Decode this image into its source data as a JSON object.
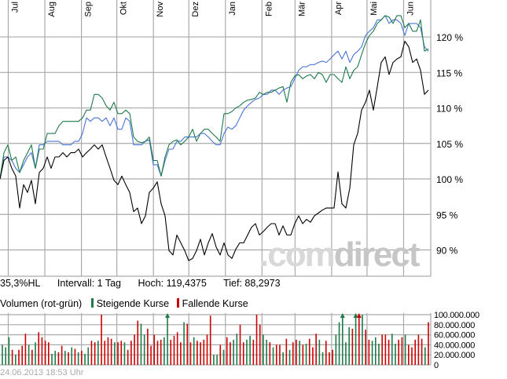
{
  "chart_data": [
    {
      "type": "line",
      "x_range": [
        "2012-06-24",
        "2013-06-24"
      ],
      "x_ticks": [
        {
          "label": "Jul",
          "date": "2012-07-01"
        },
        {
          "label": "Aug",
          "date": "2012-08-01"
        },
        {
          "label": "Sep",
          "date": "2012-09-01"
        },
        {
          "label": "Okt",
          "date": "2012-10-01"
        },
        {
          "label": "Nov",
          "date": "2012-11-01"
        },
        {
          "label": "Dez",
          "date": "2012-12-01"
        },
        {
          "label": "Jan",
          "date": "2013-01-01"
        },
        {
          "label": "Feb",
          "date": "2013-02-01"
        },
        {
          "label": "Mär",
          "date": "2013-03-01"
        },
        {
          "label": "Apr",
          "date": "2013-04-01"
        },
        {
          "label": "Mai",
          "date": "2013-05-01"
        },
        {
          "label": "Jun",
          "date": "2013-06-01"
        }
      ],
      "ylim": [
        86.3,
        125.2
      ],
      "y_ticks": [
        {
          "value": 90,
          "label": "90 %"
        },
        {
          "value": 95,
          "label": "95 %"
        },
        {
          "value": 100,
          "label": "100 %"
        },
        {
          "value": 105,
          "label": "105 %"
        },
        {
          "value": 110,
          "label": "110 %"
        },
        {
          "value": 115,
          "label": "115 %"
        },
        {
          "value": 120,
          "label": "120 %"
        }
      ],
      "grid": true,
      "series": [
        {
          "color": "#000000",
          "values": [
            100.0,
            102.6,
            103.1,
            101.5,
            100.4,
            95.9,
            99.2,
            98.1,
            99.8,
            96.5,
            100.9,
            101.5,
            103.1,
            101.5,
            103.1,
            103.1,
            103.7,
            103.1,
            103.7,
            103.7,
            104.2,
            103.1,
            103.7,
            104.2,
            104.8,
            104.2,
            104.8,
            103.1,
            101.5,
            99.8,
            99.2,
            100.4,
            99.2,
            98.1,
            95.4,
            95.9,
            93.7,
            94.8,
            98.1,
            98.7,
            99.6,
            96.5,
            94.8,
            89.9,
            89.3,
            92.1,
            91.0,
            89.9,
            88.5,
            88.8,
            89.9,
            91.5,
            89.3,
            91.0,
            92.3,
            90.4,
            89.3,
            91.0,
            89.3,
            88.8,
            90.1,
            91.0,
            91.0,
            92.1,
            93.2,
            93.7,
            92.1,
            92.6,
            93.2,
            93.7,
            93.7,
            92.1,
            93.4,
            92.1,
            92.1,
            93.7,
            94.8,
            93.7,
            94.3,
            93.9,
            94.8,
            95.2,
            95.6,
            95.9,
            95.9,
            95.9,
            101.0,
            96.5,
            95.9,
            98.7,
            104.8,
            106.4,
            109.7,
            110.8,
            112.5,
            109.7,
            113.0,
            116.4,
            117.2,
            114.7,
            116.4,
            116.9,
            117.2,
            119.4,
            118.6,
            116.4,
            116.9,
            115.3,
            111.9,
            112.5
          ]
        },
        {
          "color": "#1e7a4a",
          "values": [
            100.0,
            103.7,
            104.8,
            102.6,
            103.1,
            100.9,
            102.6,
            103.7,
            104.8,
            101.5,
            104.2,
            104.2,
            106.4,
            106.4,
            106.4,
            107.5,
            108.1,
            108.1,
            108.1,
            108.1,
            108.1,
            108.6,
            109.7,
            109.7,
            111.9,
            111.9,
            111.4,
            110.3,
            109.7,
            110.8,
            109.2,
            109.2,
            109.7,
            109.2,
            105.9,
            105.3,
            105.1,
            105.3,
            105.9,
            102.6,
            102.6,
            100.4,
            103.1,
            104.8,
            105.3,
            105.5,
            104.8,
            105.3,
            105.9,
            107.0,
            105.3,
            106.4,
            107.0,
            107.0,
            106.4,
            105.9,
            105.3,
            109.2,
            109.2,
            109.5,
            110.0,
            110.3,
            110.8,
            111.1,
            111.2,
            111.4,
            112.2,
            111.9,
            112.2,
            112.2,
            112.5,
            112.8,
            113.0,
            110.8,
            113.6,
            114.5,
            114.7,
            114.1,
            114.5,
            114.7,
            114.1,
            115.0,
            114.7,
            113.6,
            114.7,
            114.7,
            114.1,
            113.6,
            115.8,
            114.1,
            115.3,
            115.8,
            117.5,
            119.1,
            120.2,
            120.8,
            121.9,
            122.4,
            123.0,
            122.8,
            121.9,
            123.0,
            123.0,
            121.3,
            121.9,
            120.8,
            120.8,
            122.4,
            118.0,
            118.3
          ]
        },
        {
          "color": "#4a74d8",
          "values": [
            100.0,
            103.1,
            103.1,
            102.6,
            101.5,
            100.9,
            102.0,
            103.1,
            103.7,
            101.5,
            104.8,
            104.8,
            105.3,
            105.3,
            105.3,
            105.3,
            104.8,
            104.8,
            104.8,
            105.3,
            105.3,
            106.4,
            108.6,
            108.1,
            108.6,
            108.6,
            108.1,
            108.6,
            107.5,
            108.6,
            107.0,
            107.0,
            108.6,
            108.1,
            104.8,
            104.8,
            104.8,
            105.3,
            105.5,
            102.0,
            102.0,
            100.4,
            102.6,
            104.2,
            104.2,
            105.3,
            105.3,
            105.9,
            105.9,
            105.9,
            105.9,
            106.4,
            106.4,
            105.9,
            105.3,
            104.8,
            104.8,
            106.4,
            107.3,
            107.0,
            107.5,
            108.6,
            109.7,
            110.3,
            110.8,
            111.2,
            111.4,
            111.9,
            111.9,
            112.5,
            112.5,
            111.9,
            112.5,
            112.8,
            113.0,
            114.1,
            115.3,
            115.8,
            115.8,
            116.1,
            116.1,
            116.4,
            116.6,
            116.4,
            116.9,
            117.5,
            118.0,
            116.9,
            118.0,
            116.4,
            117.5,
            118.0,
            118.6,
            120.2,
            120.8,
            121.3,
            122.4,
            122.4,
            123.0,
            121.9,
            122.4,
            122.4,
            121.9,
            120.2,
            121.9,
            121.9,
            121.9,
            121.3,
            118.6,
            118.0
          ]
        }
      ]
    },
    {
      "type": "bar",
      "title": "Volumen (rot-grün)",
      "legend": [
        {
          "label": "Steigende Kurse",
          "color": "#1e7a4a"
        },
        {
          "label": "Fallende Kurse",
          "color": "#cc0000"
        }
      ],
      "ylim": [
        0,
        100000000
      ],
      "y_ticks": [
        "0",
        "20.000.000",
        "40.000.000",
        "60.000.000",
        "80.000.000",
        "100.000.000"
      ],
      "grid": true,
      "volumes_millions": [
        40,
        35,
        55,
        30,
        20,
        30,
        38,
        62,
        40,
        30,
        45,
        65,
        55,
        48,
        45,
        22,
        28,
        25,
        38,
        28,
        25,
        35,
        32,
        25,
        28,
        22,
        35,
        48,
        45,
        48,
        100,
        48,
        55,
        52,
        45,
        45,
        48,
        45,
        30,
        48,
        60,
        88,
        82,
        60,
        72,
        38,
        60,
        48,
        50,
        55,
        120,
        50,
        58,
        65,
        45,
        85,
        82,
        45,
        55,
        48,
        45,
        50,
        60,
        98,
        20,
        20,
        40,
        30,
        55,
        45,
        50,
        62,
        80,
        45,
        50,
        58,
        50,
        100,
        80,
        60,
        50,
        45,
        35,
        40,
        40,
        25,
        52,
        30,
        45,
        50,
        48,
        40,
        42,
        52,
        35,
        62,
        50,
        25,
        48,
        25,
        30,
        60,
        85,
        115,
        45,
        75,
        72,
        130,
        125,
        100,
        70,
        50,
        48,
        55,
        42,
        60,
        60,
        50,
        62,
        42,
        50,
        55,
        60,
        40,
        35,
        50,
        60,
        52,
        35,
        85
      ],
      "direction": "gggrgrrrgrgrrrrgg rrgrgrgrggrrgrrrrgrrgrrrrggrrrrrggrrrrgrrgrrrrrggrgrrggrrggrrrggrgrrgrgrrgrgrrrggrrrgggggrgrgrrgggrrrggrrgrrrrrgrr"
    }
  ],
  "info": {
    "range": "35,3%HL",
    "interval": "Intervall: 1 Tag",
    "high": "Hoch: 119,4375",
    "low": "Tief: 88,2973"
  },
  "timestamp": "24.06.2013 18:53 Uhr",
  "watermark": ".comdirect"
}
